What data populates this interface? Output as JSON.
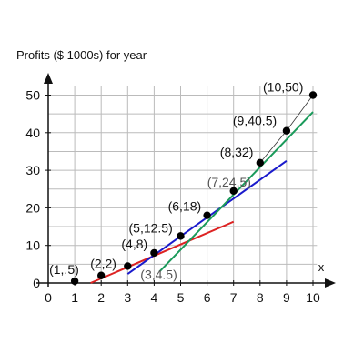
{
  "chart_data": {
    "type": "scatter",
    "ylabel": "Profits ($ 1000s) for year",
    "xlabel": "x",
    "xlim": [
      0,
      10
    ],
    "ylim": [
      0,
      50
    ],
    "grid": true,
    "x_ticks": [
      "0",
      "1",
      "2",
      "3",
      "4",
      "5",
      "6",
      "7",
      "8",
      "9",
      "10"
    ],
    "y_ticks": [
      "0",
      "10",
      "20",
      "30",
      "40",
      "50"
    ],
    "points": [
      {
        "x": 1,
        "y": 0.5,
        "label": "(1,.5)",
        "label_color": "#111111"
      },
      {
        "x": 2,
        "y": 2,
        "label": "(2,2)",
        "label_color": "#111111"
      },
      {
        "x": 3,
        "y": 4.5,
        "label": "(3,4.5)",
        "label_color": "#555555"
      },
      {
        "x": 4,
        "y": 8,
        "label": "(4,8)",
        "label_color": "#111111"
      },
      {
        "x": 5,
        "y": 12.5,
        "label": "(5,12.5)",
        "label_color": "#111111"
      },
      {
        "x": 6,
        "y": 18,
        "label": "(6,18)",
        "label_color": "#111111"
      },
      {
        "x": 7,
        "y": 24.5,
        "label": "(7,24.5)",
        "label_color": "#555555"
      },
      {
        "x": 8,
        "y": 32,
        "label": "(8,32)",
        "label_color": "#111111"
      },
      {
        "x": 9,
        "y": 40.5,
        "label": "(9,40.5)",
        "label_color": "#111111"
      },
      {
        "x": 10,
        "y": 50,
        "label": "(10,50)",
        "label_color": "#111111"
      }
    ],
    "lines": [
      {
        "color": "#dd2222",
        "from": [
          1.6,
          0
        ],
        "to": [
          7,
          16.3
        ]
      },
      {
        "color": "#1a1acc",
        "from": [
          3,
          2.4
        ],
        "to": [
          9,
          32.5
        ]
      },
      {
        "color": "#1a9a5a",
        "from": [
          4.2,
          3
        ],
        "to": [
          10,
          45.5
        ]
      }
    ],
    "colors": {
      "point": "#000000",
      "grid": "#bbbbbb",
      "axis": "#111111"
    }
  }
}
